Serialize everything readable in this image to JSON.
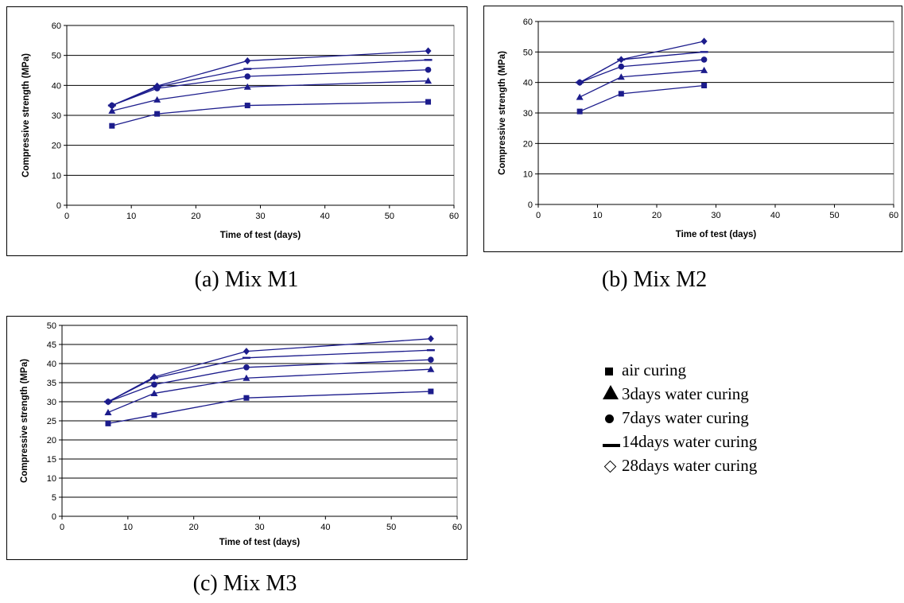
{
  "captions": [
    "(a) Mix M1",
    "(b) Mix M2",
    "(c) Mix M3"
  ],
  "legend": [
    {
      "marker": "square",
      "label": "air curing"
    },
    {
      "marker": "triangle",
      "label": "3days water curing"
    },
    {
      "marker": "circle",
      "label": "7days water curing"
    },
    {
      "marker": "dash",
      "label": "14days water curing"
    },
    {
      "marker": "diamond-outline",
      "label": "28days water curing"
    }
  ],
  "colors": {
    "line": "#1c1c8c",
    "marker": "#1c1c8c",
    "grid": "#000000",
    "frame": "#808080"
  },
  "chart_data": [
    {
      "type": "line",
      "caption": "(a) Mix M1",
      "xlabel": "Time of test (days)",
      "ylabel": "Compressive strength (MPa)",
      "xlim": [
        0,
        60
      ],
      "ylim": [
        0,
        60
      ],
      "xticks": [
        0,
        10,
        20,
        30,
        40,
        50,
        60
      ],
      "yticks": [
        0,
        10,
        20,
        30,
        40,
        50,
        60
      ],
      "grid": "horizontal",
      "x": [
        7,
        14,
        28,
        56
      ],
      "series": [
        {
          "name": "air curing",
          "marker": "square",
          "values": [
            26.5,
            30.5,
            33.3,
            34.5
          ]
        },
        {
          "name": "3days water curing",
          "marker": "triangle",
          "values": [
            31.5,
            35.2,
            39.5,
            41.5
          ]
        },
        {
          "name": "7days water curing",
          "marker": "circle",
          "values": [
            33.3,
            39.0,
            43.0,
            45.2
          ]
        },
        {
          "name": "14days water curing",
          "marker": "dash",
          "values": [
            33.3,
            39.5,
            45.5,
            48.5
          ]
        },
        {
          "name": "28days water curing",
          "marker": "diamond",
          "values": [
            33.3,
            39.8,
            48.2,
            51.5
          ]
        }
      ]
    },
    {
      "type": "line",
      "caption": "(b) Mix M2",
      "xlabel": "Time of test (days)",
      "ylabel": "Compressive strength (MPa)",
      "xlim": [
        0,
        60
      ],
      "ylim": [
        0,
        60
      ],
      "xticks": [
        0,
        10,
        20,
        30,
        40,
        50,
        60
      ],
      "yticks": [
        0,
        10,
        20,
        30,
        40,
        50,
        60
      ],
      "grid": "horizontal",
      "x": [
        7,
        14,
        28
      ],
      "series": [
        {
          "name": "air curing",
          "marker": "square",
          "values": [
            30.5,
            36.3,
            39.0
          ]
        },
        {
          "name": "3days water curing",
          "marker": "triangle",
          "values": [
            35.2,
            41.8,
            44.0
          ]
        },
        {
          "name": "7days water curing",
          "marker": "circle",
          "values": [
            40.0,
            45.2,
            47.5
          ]
        },
        {
          "name": "14days water curing",
          "marker": "dash",
          "values": [
            40.0,
            47.5,
            50.0
          ]
        },
        {
          "name": "28days water curing",
          "marker": "diamond",
          "values": [
            40.0,
            47.5,
            53.5
          ]
        }
      ]
    },
    {
      "type": "line",
      "caption": "(c) Mix M3",
      "xlabel": "Time of test (days)",
      "ylabel": "Compressive strength (MPa)",
      "xlim": [
        0,
        60
      ],
      "ylim": [
        0,
        50
      ],
      "xticks": [
        0,
        10,
        20,
        30,
        40,
        50,
        60
      ],
      "yticks": [
        0,
        5,
        10,
        15,
        20,
        25,
        30,
        35,
        40,
        45,
        50
      ],
      "grid": "horizontal",
      "x": [
        7,
        14,
        28,
        56
      ],
      "series": [
        {
          "name": "air curing",
          "marker": "square",
          "values": [
            24.3,
            26.5,
            31.0,
            32.7
          ]
        },
        {
          "name": "3days water curing",
          "marker": "triangle",
          "values": [
            27.2,
            32.2,
            36.2,
            38.5
          ]
        },
        {
          "name": "7days water curing",
          "marker": "circle",
          "values": [
            30.0,
            34.5,
            39.0,
            41.0
          ]
        },
        {
          "name": "14days water curing",
          "marker": "dash",
          "values": [
            30.0,
            36.2,
            41.5,
            43.5
          ]
        },
        {
          "name": "28days water curing",
          "marker": "diamond",
          "values": [
            30.0,
            36.5,
            43.2,
            46.5
          ]
        }
      ]
    }
  ]
}
